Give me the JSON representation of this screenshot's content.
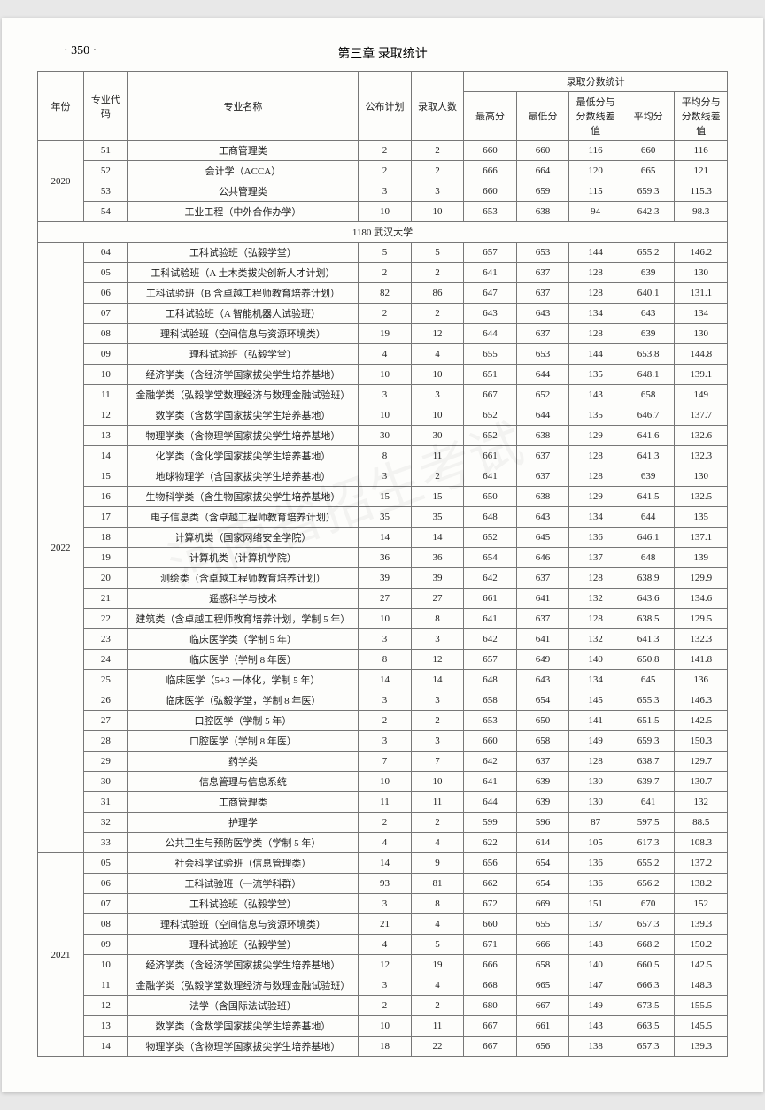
{
  "page_number_label": "· 350 ·",
  "chapter_title": "第三章  录取统计",
  "header": {
    "year": "年份",
    "code": "专业代码",
    "name": "专业名称",
    "plan": "公布计划",
    "admit": "录取人数",
    "score_group": "录取分数统计",
    "max": "最高分",
    "min": "最低分",
    "mindiff": "最低分与分数线差值",
    "avg": "平均分",
    "avgdiff": "平均分与分数线差值"
  },
  "section_2020": {
    "year": "2020"
  },
  "rows_2020": [
    {
      "code": "51",
      "name": "工商管理类",
      "plan": "2",
      "admit": "2",
      "max": "660",
      "min": "660",
      "mindiff": "116",
      "avg": "660",
      "avgdiff": "116"
    },
    {
      "code": "52",
      "name": "会计学（ACCA）",
      "plan": "2",
      "admit": "2",
      "max": "666",
      "min": "664",
      "mindiff": "120",
      "avg": "665",
      "avgdiff": "121"
    },
    {
      "code": "53",
      "name": "公共管理类",
      "plan": "3",
      "admit": "3",
      "max": "660",
      "min": "659",
      "mindiff": "115",
      "avg": "659.3",
      "avgdiff": "115.3"
    },
    {
      "code": "54",
      "name": "工业工程（中外合作办学）",
      "plan": "10",
      "admit": "10",
      "max": "653",
      "min": "638",
      "mindiff": "94",
      "avg": "642.3",
      "avgdiff": "98.3"
    }
  ],
  "section_wuhan": {
    "label": "1180  武汉大学"
  },
  "section_2022": {
    "year": "2022"
  },
  "rows_2022": [
    {
      "code": "04",
      "name": "工科试验班（弘毅学堂）",
      "plan": "5",
      "admit": "5",
      "max": "657",
      "min": "653",
      "mindiff": "144",
      "avg": "655.2",
      "avgdiff": "146.2"
    },
    {
      "code": "05",
      "name": "工科试验班（A 土木类拔尖创新人才计划）",
      "plan": "2",
      "admit": "2",
      "max": "641",
      "min": "637",
      "mindiff": "128",
      "avg": "639",
      "avgdiff": "130"
    },
    {
      "code": "06",
      "name": "工科试验班（B 含卓越工程师教育培养计划）",
      "plan": "82",
      "admit": "86",
      "max": "647",
      "min": "637",
      "mindiff": "128",
      "avg": "640.1",
      "avgdiff": "131.1"
    },
    {
      "code": "07",
      "name": "工科试验班（A 智能机器人试验班）",
      "plan": "2",
      "admit": "2",
      "max": "643",
      "min": "643",
      "mindiff": "134",
      "avg": "643",
      "avgdiff": "134"
    },
    {
      "code": "08",
      "name": "理科试验班（空间信息与资源环境类）",
      "plan": "19",
      "admit": "12",
      "max": "644",
      "min": "637",
      "mindiff": "128",
      "avg": "639",
      "avgdiff": "130"
    },
    {
      "code": "09",
      "name": "理科试验班（弘毅学堂）",
      "plan": "4",
      "admit": "4",
      "max": "655",
      "min": "653",
      "mindiff": "144",
      "avg": "653.8",
      "avgdiff": "144.8"
    },
    {
      "code": "10",
      "name": "经济学类（含经济学国家拔尖学生培养基地）",
      "plan": "10",
      "admit": "10",
      "max": "651",
      "min": "644",
      "mindiff": "135",
      "avg": "648.1",
      "avgdiff": "139.1"
    },
    {
      "code": "11",
      "name": "金融学类（弘毅学堂数理经济与数理金融试验班）",
      "plan": "3",
      "admit": "3",
      "max": "667",
      "min": "652",
      "mindiff": "143",
      "avg": "658",
      "avgdiff": "149"
    },
    {
      "code": "12",
      "name": "数学类（含数学国家拔尖学生培养基地）",
      "plan": "10",
      "admit": "10",
      "max": "652",
      "min": "644",
      "mindiff": "135",
      "avg": "646.7",
      "avgdiff": "137.7"
    },
    {
      "code": "13",
      "name": "物理学类（含物理学国家拔尖学生培养基地）",
      "plan": "30",
      "admit": "30",
      "max": "652",
      "min": "638",
      "mindiff": "129",
      "avg": "641.6",
      "avgdiff": "132.6"
    },
    {
      "code": "14",
      "name": "化学类（含化学国家拔尖学生培养基地）",
      "plan": "8",
      "admit": "11",
      "max": "661",
      "min": "637",
      "mindiff": "128",
      "avg": "641.3",
      "avgdiff": "132.3"
    },
    {
      "code": "15",
      "name": "地球物理学（含国家拔尖学生培养基地）",
      "plan": "3",
      "admit": "2",
      "max": "641",
      "min": "637",
      "mindiff": "128",
      "avg": "639",
      "avgdiff": "130"
    },
    {
      "code": "16",
      "name": "生物科学类（含生物国家拔尖学生培养基地）",
      "plan": "15",
      "admit": "15",
      "max": "650",
      "min": "638",
      "mindiff": "129",
      "avg": "641.5",
      "avgdiff": "132.5"
    },
    {
      "code": "17",
      "name": "电子信息类（含卓越工程师教育培养计划）",
      "plan": "35",
      "admit": "35",
      "max": "648",
      "min": "643",
      "mindiff": "134",
      "avg": "644",
      "avgdiff": "135"
    },
    {
      "code": "18",
      "name": "计算机类（国家网络安全学院）",
      "plan": "14",
      "admit": "14",
      "max": "652",
      "min": "645",
      "mindiff": "136",
      "avg": "646.1",
      "avgdiff": "137.1"
    },
    {
      "code": "19",
      "name": "计算机类（计算机学院）",
      "plan": "36",
      "admit": "36",
      "max": "654",
      "min": "646",
      "mindiff": "137",
      "avg": "648",
      "avgdiff": "139"
    },
    {
      "code": "20",
      "name": "测绘类（含卓越工程师教育培养计划）",
      "plan": "39",
      "admit": "39",
      "max": "642",
      "min": "637",
      "mindiff": "128",
      "avg": "638.9",
      "avgdiff": "129.9"
    },
    {
      "code": "21",
      "name": "遥感科学与技术",
      "plan": "27",
      "admit": "27",
      "max": "661",
      "min": "641",
      "mindiff": "132",
      "avg": "643.6",
      "avgdiff": "134.6"
    },
    {
      "code": "22",
      "name": "建筑类（含卓越工程师教育培养计划，学制 5 年）",
      "plan": "10",
      "admit": "8",
      "max": "641",
      "min": "637",
      "mindiff": "128",
      "avg": "638.5",
      "avgdiff": "129.5"
    },
    {
      "code": "23",
      "name": "临床医学类（学制 5 年）",
      "plan": "3",
      "admit": "3",
      "max": "642",
      "min": "641",
      "mindiff": "132",
      "avg": "641.3",
      "avgdiff": "132.3"
    },
    {
      "code": "24",
      "name": "临床医学（学制 8 年医）",
      "plan": "8",
      "admit": "12",
      "max": "657",
      "min": "649",
      "mindiff": "140",
      "avg": "650.8",
      "avgdiff": "141.8"
    },
    {
      "code": "25",
      "name": "临床医学（5+3 一体化，学制 5 年）",
      "plan": "14",
      "admit": "14",
      "max": "648",
      "min": "643",
      "mindiff": "134",
      "avg": "645",
      "avgdiff": "136"
    },
    {
      "code": "26",
      "name": "临床医学（弘毅学堂，学制 8 年医）",
      "plan": "3",
      "admit": "3",
      "max": "658",
      "min": "654",
      "mindiff": "145",
      "avg": "655.3",
      "avgdiff": "146.3"
    },
    {
      "code": "27",
      "name": "口腔医学（学制 5 年）",
      "plan": "2",
      "admit": "2",
      "max": "653",
      "min": "650",
      "mindiff": "141",
      "avg": "651.5",
      "avgdiff": "142.5"
    },
    {
      "code": "28",
      "name": "口腔医学（学制 8 年医）",
      "plan": "3",
      "admit": "3",
      "max": "660",
      "min": "658",
      "mindiff": "149",
      "avg": "659.3",
      "avgdiff": "150.3"
    },
    {
      "code": "29",
      "name": "药学类",
      "plan": "7",
      "admit": "7",
      "max": "642",
      "min": "637",
      "mindiff": "128",
      "avg": "638.7",
      "avgdiff": "129.7"
    },
    {
      "code": "30",
      "name": "信息管理与信息系统",
      "plan": "10",
      "admit": "10",
      "max": "641",
      "min": "639",
      "mindiff": "130",
      "avg": "639.7",
      "avgdiff": "130.7"
    },
    {
      "code": "31",
      "name": "工商管理类",
      "plan": "11",
      "admit": "11",
      "max": "644",
      "min": "639",
      "mindiff": "130",
      "avg": "641",
      "avgdiff": "132"
    },
    {
      "code": "32",
      "name": "护理学",
      "plan": "2",
      "admit": "2",
      "max": "599",
      "min": "596",
      "mindiff": "87",
      "avg": "597.5",
      "avgdiff": "88.5"
    },
    {
      "code": "33",
      "name": "公共卫生与预防医学类（学制 5 年）",
      "plan": "4",
      "admit": "4",
      "max": "622",
      "min": "614",
      "mindiff": "105",
      "avg": "617.3",
      "avgdiff": "108.3"
    }
  ],
  "section_2021": {
    "year": "2021"
  },
  "rows_2021": [
    {
      "code": "05",
      "name": "社会科学试验班（信息管理类）",
      "plan": "14",
      "admit": "9",
      "max": "656",
      "min": "654",
      "mindiff": "136",
      "avg": "655.2",
      "avgdiff": "137.2"
    },
    {
      "code": "06",
      "name": "工科试验班（一流学科群）",
      "plan": "93",
      "admit": "81",
      "max": "662",
      "min": "654",
      "mindiff": "136",
      "avg": "656.2",
      "avgdiff": "138.2"
    },
    {
      "code": "07",
      "name": "工科试验班（弘毅学堂）",
      "plan": "3",
      "admit": "8",
      "max": "672",
      "min": "669",
      "mindiff": "151",
      "avg": "670",
      "avgdiff": "152"
    },
    {
      "code": "08",
      "name": "理科试验班（空间信息与资源环境类）",
      "plan": "21",
      "admit": "4",
      "max": "660",
      "min": "655",
      "mindiff": "137",
      "avg": "657.3",
      "avgdiff": "139.3"
    },
    {
      "code": "09",
      "name": "理科试验班（弘毅学堂）",
      "plan": "4",
      "admit": "5",
      "max": "671",
      "min": "666",
      "mindiff": "148",
      "avg": "668.2",
      "avgdiff": "150.2"
    },
    {
      "code": "10",
      "name": "经济学类（含经济学国家拔尖学生培养基地）",
      "plan": "12",
      "admit": "19",
      "max": "666",
      "min": "658",
      "mindiff": "140",
      "avg": "660.5",
      "avgdiff": "142.5"
    },
    {
      "code": "11",
      "name": "金融学类（弘毅学堂数理经济与数理金融试验班）",
      "plan": "3",
      "admit": "4",
      "max": "668",
      "min": "665",
      "mindiff": "147",
      "avg": "666.3",
      "avgdiff": "148.3"
    },
    {
      "code": "12",
      "name": "法学（含国际法试验班）",
      "plan": "2",
      "admit": "2",
      "max": "680",
      "min": "667",
      "mindiff": "149",
      "avg": "673.5",
      "avgdiff": "155.5"
    },
    {
      "code": "13",
      "name": "数学类（含数学国家拔尖学生培养基地）",
      "plan": "10",
      "admit": "11",
      "max": "667",
      "min": "661",
      "mindiff": "143",
      "avg": "663.5",
      "avgdiff": "145.5"
    },
    {
      "code": "14",
      "name": "物理学类（含物理学国家拔尖学生培养基地）",
      "plan": "18",
      "admit": "22",
      "max": "667",
      "min": "656",
      "mindiff": "138",
      "avg": "657.3",
      "avgdiff": "139.3"
    }
  ]
}
